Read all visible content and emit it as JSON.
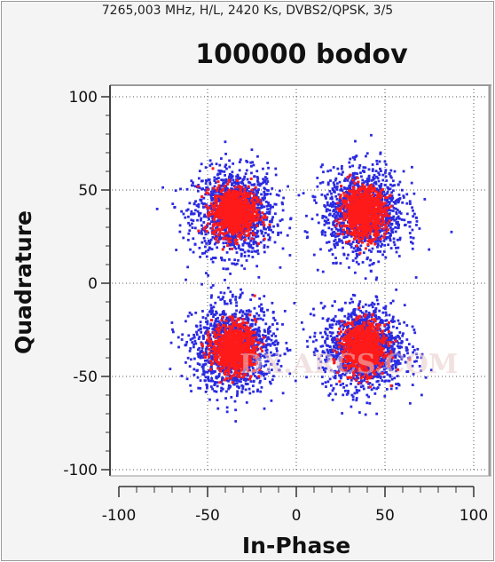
{
  "header": {
    "subtitle": "7265,003 MHz, H/L, 2420 Ks, DVBS2/QPSK, 3/5",
    "title": "100000 bodov"
  },
  "watermark": {
    "text": "DX.ARCS.COM",
    "color": "#e9c9c9"
  },
  "chart_data": {
    "type": "scatter",
    "title": "100000 bodov",
    "subtitle": "7265,003 MHz, H/L, 2420 Ks, DVBS2/QPSK, 3/5",
    "xlabel": "In-Phase",
    "ylabel": "Quadrature",
    "xlim": [
      -100,
      100
    ],
    "ylim": [
      -100,
      100
    ],
    "xticks": [
      -100,
      -50,
      0,
      50,
      100
    ],
    "yticks": [
      100,
      50,
      0,
      -50,
      -100
    ],
    "grid": true,
    "point_count": 100000,
    "clusters": [
      {
        "x": -35,
        "y": 38,
        "spread": 11
      },
      {
        "x": 38,
        "y": 38,
        "spread": 11
      },
      {
        "x": -35,
        "y": -35,
        "spread": 11
      },
      {
        "x": 38,
        "y": -35,
        "spread": 11
      }
    ],
    "colors": {
      "low_density": "#2a2ae0",
      "high_density": "#ff1a1a"
    }
  }
}
